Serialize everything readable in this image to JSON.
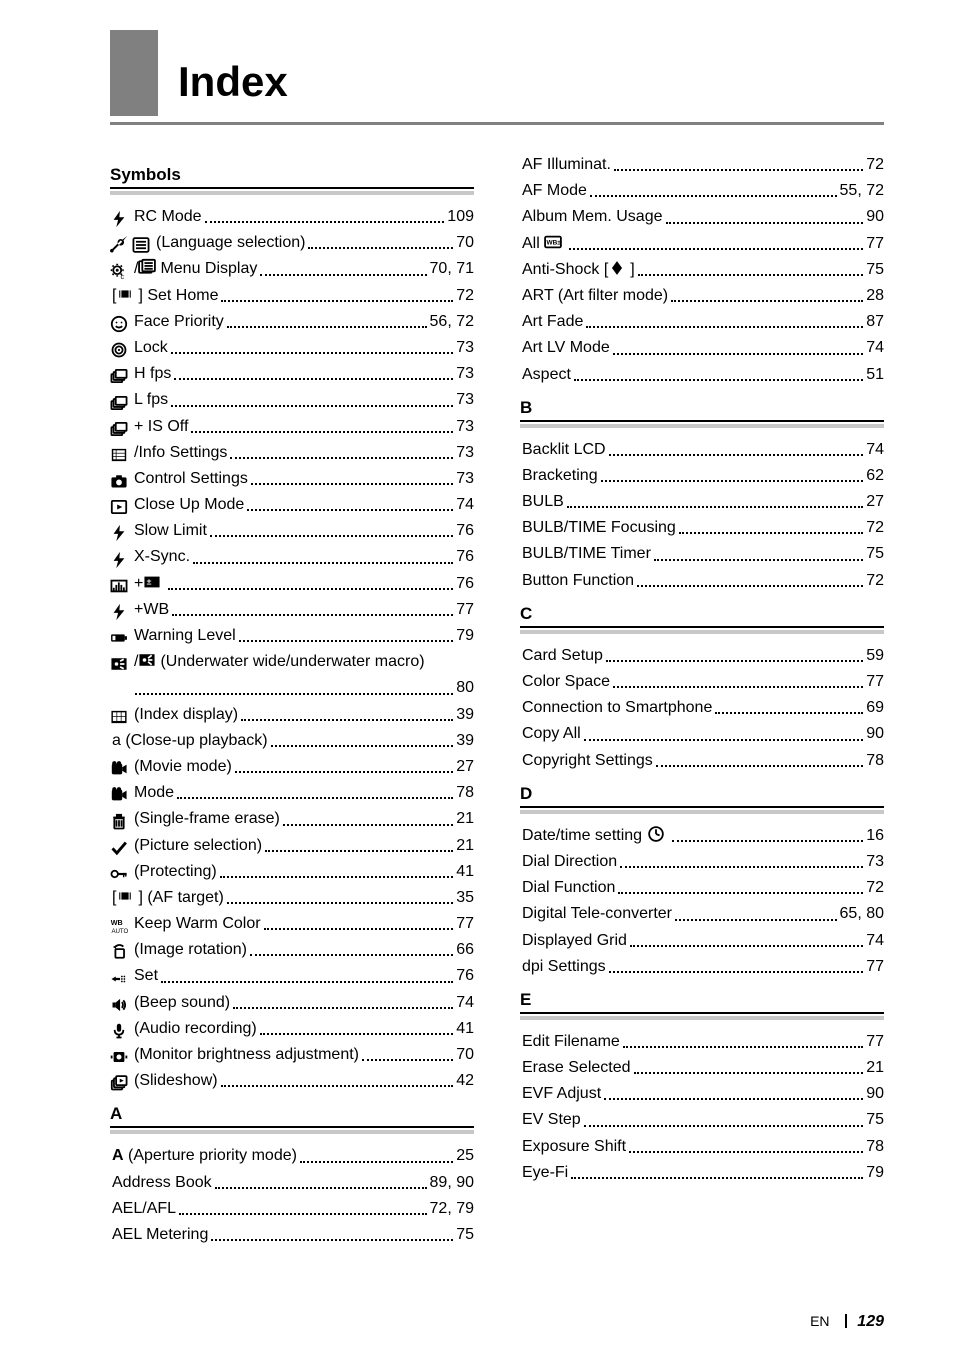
{
  "title": "Index",
  "footer": {
    "lang": "EN",
    "page": "129"
  },
  "style": {
    "page_bg": "#ffffff",
    "text_color": "#000000",
    "title_fontsize_pt": 32,
    "body_fontsize_pt": 12,
    "title_bar_color": "#808080",
    "section_rule_color": "#000000",
    "section_rule2_color": "#c8c8c8",
    "dot_leader_color": "#000000",
    "font_family": "Arial"
  },
  "sections": [
    {
      "head": "Symbols",
      "column": "left",
      "entries": [
        {
          "icons": [
            "flash"
          ],
          "label": "RC Mode",
          "page": "109"
        },
        {
          "icons": [
            "wrench",
            "menu-list"
          ],
          "label": "(Language selection)",
          "page": "70"
        },
        {
          "icons": [
            "gear-sub"
          ],
          "label": "/",
          "icons2": [
            "playback-menu"
          ],
          "label2": "Menu Display",
          "page": "70, 71"
        },
        {
          "icons": [],
          "label": "[",
          "mid_icons": [
            "af-target"
          ],
          "label2": "] Set Home",
          "page": "72"
        },
        {
          "icons": [
            "face"
          ],
          "label": "Face Priority",
          "page": "56, 72"
        },
        {
          "icons": [
            "target"
          ],
          "label": "Lock",
          "page": "73"
        },
        {
          "icons": [
            "sequential"
          ],
          "label": "H fps",
          "page": "73"
        },
        {
          "icons": [
            "sequential"
          ],
          "label": "L fps",
          "page": "73"
        },
        {
          "icons": [
            "sequential"
          ],
          "label": "+ IS Off",
          "page": "73"
        },
        {
          "icons": [
            "info-grid"
          ],
          "label": "/Info Settings",
          "page": "73"
        },
        {
          "icons": [
            "camera"
          ],
          "label": "Control Settings",
          "page": "73"
        },
        {
          "icons": [
            "play"
          ],
          "label": "Close Up Mode",
          "page": "74"
        },
        {
          "icons": [
            "flash"
          ],
          "label": "Slow Limit",
          "page": "76"
        },
        {
          "icons": [
            "flash"
          ],
          "label": "X-Sync.",
          "page": "76"
        },
        {
          "icons": [
            "histogram"
          ],
          "label": "+",
          "mid_icons": [
            "expcomp"
          ],
          "label2": "",
          "page": "76"
        },
        {
          "icons": [
            "flash"
          ],
          "label": "+WB",
          "page": "77"
        },
        {
          "icons": [
            "battery"
          ],
          "label": "Warning Level",
          "page": "79"
        },
        {
          "icons": [
            "uw-wide"
          ],
          "label": "/",
          "mid_icons": [
            "uw-macro"
          ],
          "label2": "(Underwater wide/underwater macro)",
          "page": "80",
          "wrap": true
        },
        {
          "icons": [
            "index-grid"
          ],
          "label": "(Index display)",
          "page": "39"
        },
        {
          "icons": [],
          "label": "a (Close-up playback)",
          "page": "39"
        },
        {
          "icons": [
            "movie"
          ],
          "label": "(Movie mode)",
          "page": "27"
        },
        {
          "icons": [
            "movie"
          ],
          "label": "Mode",
          "page": "78"
        },
        {
          "icons": [
            "trash"
          ],
          "label": "(Single-frame erase)",
          "page": "21"
        },
        {
          "icons": [
            "check"
          ],
          "label": "(Picture selection)",
          "page": "21"
        },
        {
          "icons": [
            "key"
          ],
          "label": "(Protecting)",
          "page": "41"
        },
        {
          "icons": [],
          "label": "[",
          "mid_icons": [
            "af-target"
          ],
          "label2": "] (AF target)",
          "page": "35"
        },
        {
          "icons": [
            "wb-auto"
          ],
          "label": "Keep Warm Color",
          "page": "77"
        },
        {
          "icons": [
            "rotate"
          ],
          "label": "(Image rotation)",
          "page": "66"
        },
        {
          "icons": [
            "pixel-map"
          ],
          "label": "Set",
          "page": "76"
        },
        {
          "icons": [
            "beep"
          ],
          "label": "(Beep sound)",
          "page": "74"
        },
        {
          "icons": [
            "mic"
          ],
          "label": "(Audio recording)",
          "page": "41"
        },
        {
          "icons": [
            "monitor-bright"
          ],
          "label": "(Monitor brightness adjustment)",
          "page": "70"
        },
        {
          "icons": [
            "slideshow"
          ],
          "label": "(Slideshow)",
          "page": "42"
        }
      ]
    },
    {
      "head": "A",
      "column": "left",
      "entries": [
        {
          "icons": [],
          "label_bold_prefix": "A",
          "label": " (Aperture priority mode)",
          "page": "25"
        },
        {
          "icons": [],
          "label": "Address Book",
          "page": "89, 90"
        },
        {
          "icons": [],
          "label": "AEL/AFL",
          "page": "72, 79"
        },
        {
          "icons": [],
          "label": "AEL Metering",
          "page": "75"
        }
      ]
    },
    {
      "head": "",
      "column": "right",
      "entries": [
        {
          "icons": [],
          "label": "AF Illuminat.",
          "page": "72"
        },
        {
          "icons": [],
          "label": "AF Mode",
          "page": "55, 72"
        },
        {
          "icons": [],
          "label": "Album Mem. Usage",
          "page": "90"
        },
        {
          "icons": [],
          "label": "All ",
          "mid_icons": [
            "wb-box"
          ],
          "label2": "",
          "page": "77"
        },
        {
          "icons": [],
          "label": "Anti-Shock [",
          "mid_icons": [
            "diamond"
          ],
          "label2": "]",
          "page": "75"
        },
        {
          "icons": [],
          "label": "ART (Art filter mode)",
          "page": "28"
        },
        {
          "icons": [],
          "label": "Art Fade",
          "page": "87"
        },
        {
          "icons": [],
          "label": "Art LV Mode",
          "page": "74"
        },
        {
          "icons": [],
          "label": "Aspect",
          "page": "51"
        }
      ]
    },
    {
      "head": "B",
      "column": "right",
      "entries": [
        {
          "icons": [],
          "label": "Backlit LCD",
          "page": "74"
        },
        {
          "icons": [],
          "label": "Bracketing",
          "page": "62"
        },
        {
          "icons": [],
          "label": "BULB",
          "page": "27"
        },
        {
          "icons": [],
          "label": "BULB/TIME Focusing",
          "page": "72"
        },
        {
          "icons": [],
          "label": "BULB/TIME Timer",
          "page": "75"
        },
        {
          "icons": [],
          "label": "Button Function",
          "page": "72"
        }
      ]
    },
    {
      "head": "C",
      "column": "right",
      "entries": [
        {
          "icons": [],
          "label": "Card Setup",
          "page": "59"
        },
        {
          "icons": [],
          "label": "Color Space",
          "page": "77"
        },
        {
          "icons": [],
          "label": "Connection to Smartphone",
          "page": "69"
        },
        {
          "icons": [],
          "label": "Copy All",
          "page": "90"
        },
        {
          "icons": [],
          "label": "Copyright Settings",
          "page": "78"
        }
      ]
    },
    {
      "head": "D",
      "column": "right",
      "entries": [
        {
          "icons": [],
          "label": "Date/time setting ",
          "mid_icons": [
            "clock"
          ],
          "label2": "",
          "page": "16"
        },
        {
          "icons": [],
          "label": "Dial Direction",
          "page": "73"
        },
        {
          "icons": [],
          "label": "Dial Function",
          "page": "72"
        },
        {
          "icons": [],
          "label": "Digital Tele-converter",
          "page": "65, 80"
        },
        {
          "icons": [],
          "label": "Displayed Grid",
          "page": "74"
        },
        {
          "icons": [],
          "label": "dpi Settings",
          "page": "77"
        }
      ]
    },
    {
      "head": "E",
      "column": "right",
      "entries": [
        {
          "icons": [],
          "label": "Edit Filename",
          "page": "77"
        },
        {
          "icons": [],
          "label": "Erase Selected",
          "page": "21"
        },
        {
          "icons": [],
          "label": "EVF Adjust",
          "page": "90"
        },
        {
          "icons": [],
          "label": "EV Step",
          "page": "75"
        },
        {
          "icons": [],
          "label": "Exposure Shift",
          "page": "78"
        },
        {
          "icons": [],
          "label": "Eye-Fi",
          "page": "79"
        }
      ]
    }
  ],
  "icons": {
    "flash": "z",
    "wrench": "wr",
    "menu-list": "ml",
    "gear-sub": "gs",
    "playback-menu": "pm",
    "af-target": "af",
    "face": "fc",
    "target": "tg",
    "sequential": "sq",
    "info-grid": "ig",
    "camera": "cm",
    "play": "pl",
    "histogram": "hg",
    "expcomp": "ec",
    "battery": "bt",
    "uw-wide": "uw",
    "uw-macro": "um",
    "index-grid": "ix",
    "movie": "mv",
    "trash": "tr",
    "check": "ck",
    "key": "ky",
    "wb-auto": "wa",
    "rotate": "rt",
    "pixel-map": "px",
    "beep": "bp",
    "mic": "mc",
    "monitor-bright": "mb",
    "slideshow": "ss",
    "wb-box": "wbx",
    "diamond": "dm",
    "clock": "clk"
  }
}
